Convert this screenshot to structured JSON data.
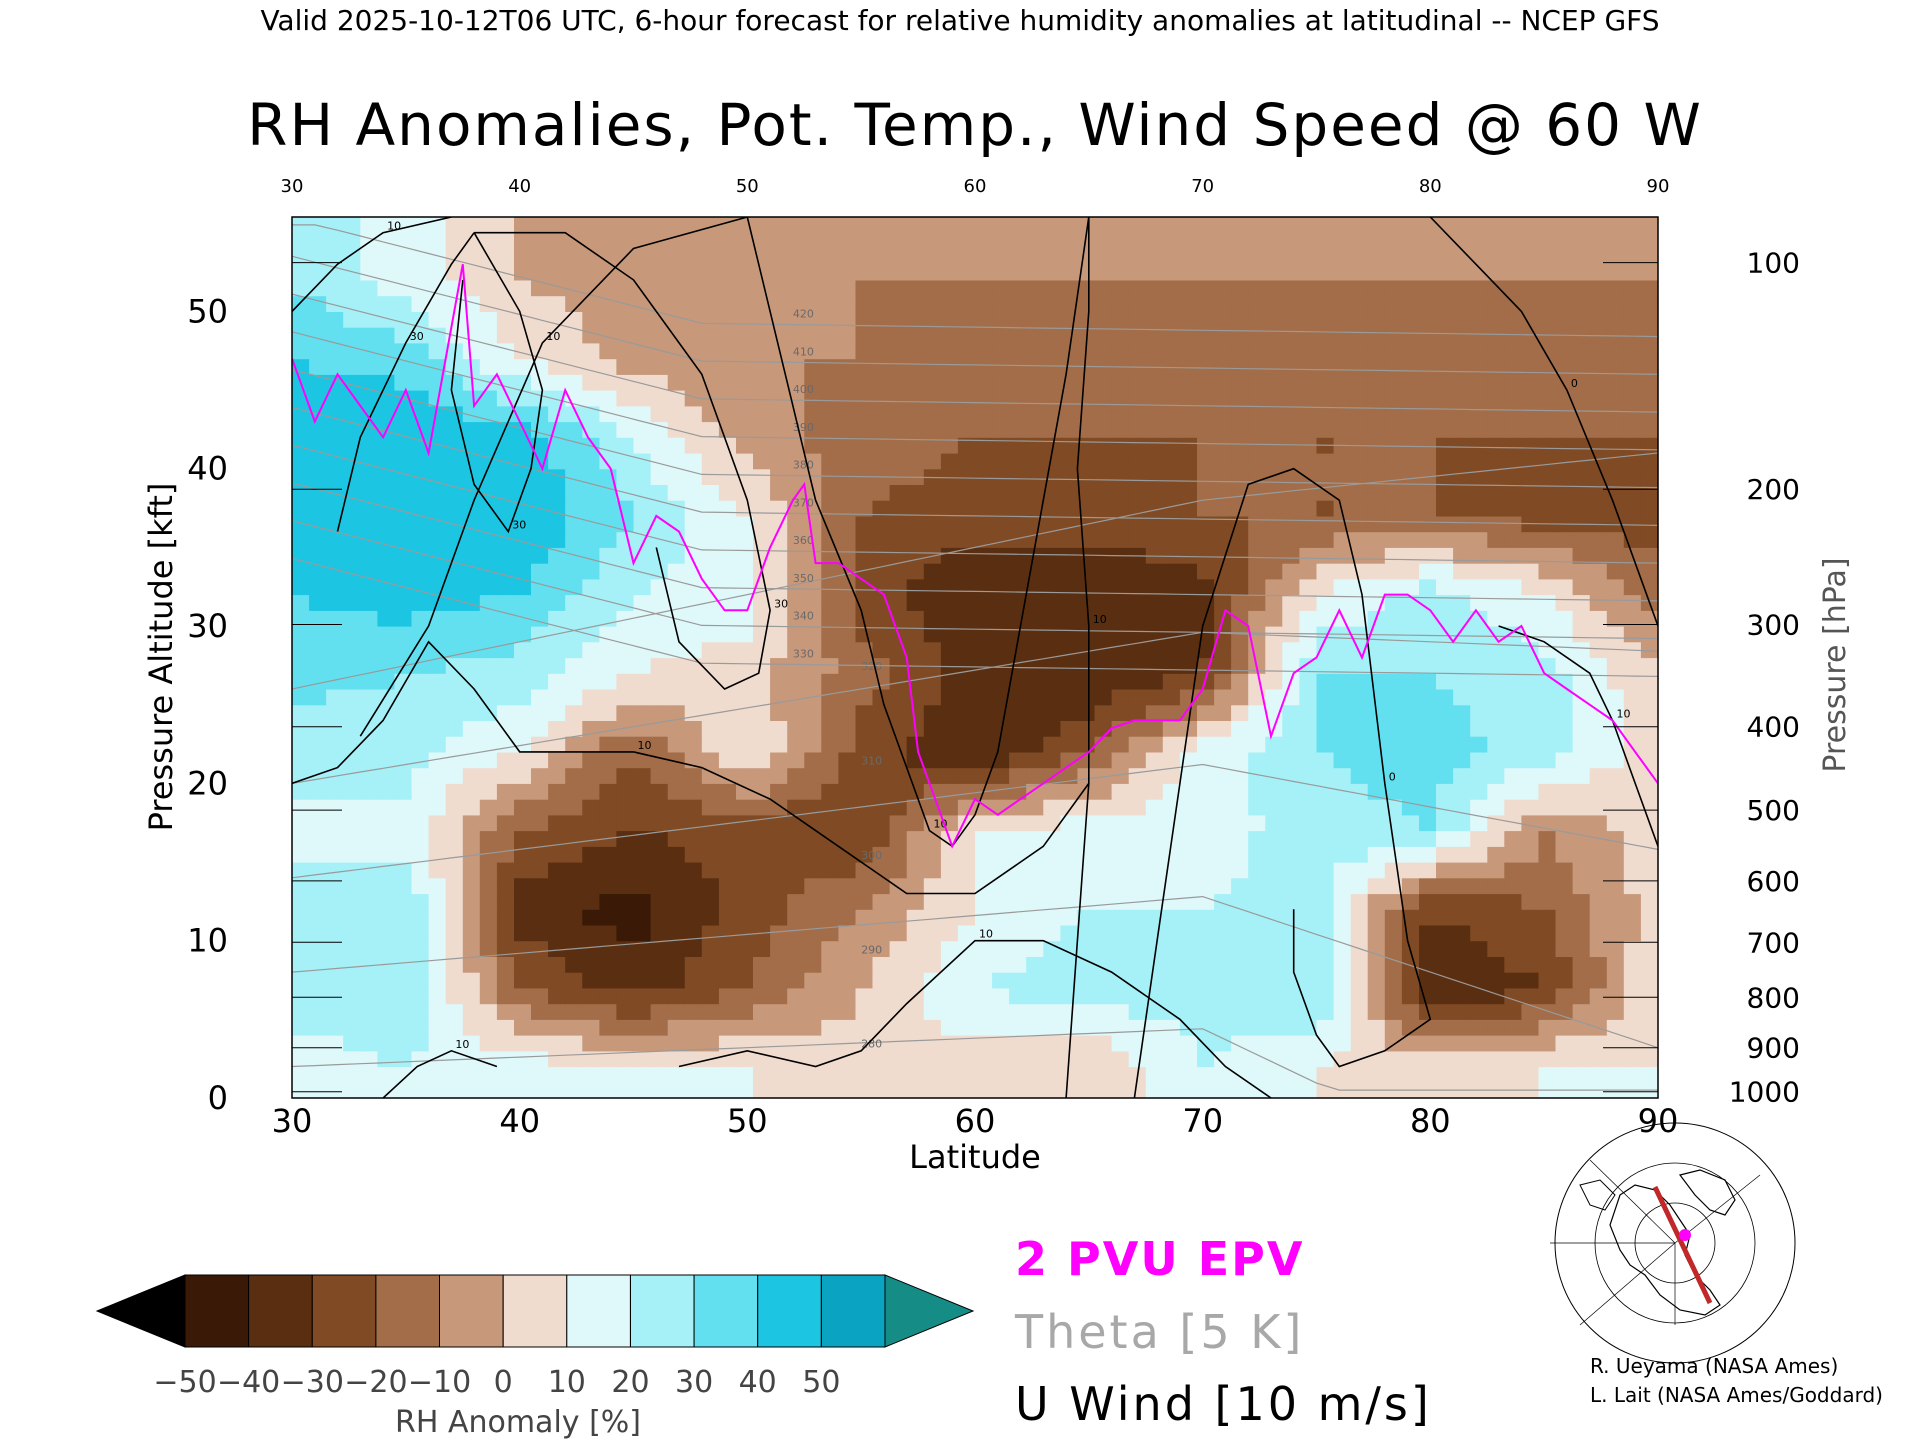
{
  "chart_data": {
    "type": "heatmap",
    "header": "Valid 2025-10-12T06 UTC, 6-hour forecast for relative humidity anomalies at latitudinal -- NCEP GFS",
    "title": "RH Anomalies, Pot. Temp., Wind Speed @ 60 W",
    "xlabel": "Latitude",
    "ylabel": "Pressure Altitude [kft]",
    "ylabel_right": "Pressure [hPa]",
    "xlim": [
      30,
      90
    ],
    "ylim": [
      0,
      56
    ],
    "x_ticks": [
      "30",
      "40",
      "50",
      "60",
      "70",
      "80",
      "90"
    ],
    "y_ticks": [
      "0",
      "10",
      "20",
      "30",
      "40",
      "50"
    ],
    "top_ticks": [
      "30",
      "40",
      "50",
      "60",
      "70",
      "80",
      "90"
    ],
    "pressure_ticks": [
      {
        "label": "100",
        "kft": 53.1
      },
      {
        "label": "200",
        "kft": 38.7
      },
      {
        "label": "300",
        "kft": 30.1
      },
      {
        "label": "400",
        "kft": 23.6
      },
      {
        "label": "500",
        "kft": 18.3
      },
      {
        "label": "600",
        "kft": 13.8
      },
      {
        "label": "700",
        "kft": 9.9
      },
      {
        "label": "800",
        "kft": 6.4
      },
      {
        "label": "900",
        "kft": 3.2
      },
      {
        "label": "1000",
        "kft": 0.4
      }
    ],
    "colorbar": {
      "label": "RH Anomaly [%]",
      "tick_labels": [
        "−50",
        "−40",
        "−30",
        "−20",
        "−10",
        "0",
        "10",
        "20",
        "30",
        "40",
        "50"
      ],
      "colors": [
        "#000000",
        "#3a1a06",
        "#5a2e10",
        "#7f4a24",
        "#a26d48",
        "#c7987a",
        "#f0dccf",
        "#dff8fa",
        "#a6f0f7",
        "#62e0f0",
        "#1cc6e2",
        "#0aa3c2",
        "#168c86"
      ]
    },
    "rh_field": {
      "latitudes": [
        30,
        35,
        40,
        45,
        50,
        55,
        60,
        65,
        70,
        75,
        80,
        85,
        90
      ],
      "altitudes_kft": [
        2,
        7,
        12,
        17,
        22,
        27,
        32,
        37,
        42,
        47,
        52
      ],
      "rh_anomaly_pct": [
        [
          15,
          20,
          15,
          10,
          10,
          5,
          5,
          0,
          20,
          10,
          5,
          10,
          10
        ],
        [
          25,
          30,
          -20,
          -35,
          -20,
          0,
          20,
          25,
          25,
          30,
          -40,
          -30,
          10
        ],
        [
          20,
          30,
          -35,
          -45,
          -25,
          -10,
          10,
          20,
          20,
          25,
          -30,
          -20,
          5
        ],
        [
          20,
          15,
          -20,
          -30,
          -25,
          -30,
          10,
          15,
          15,
          25,
          30,
          -10,
          5
        ],
        [
          20,
          25,
          10,
          -20,
          10,
          -25,
          -40,
          -20,
          15,
          30,
          35,
          25,
          5
        ],
        [
          35,
          30,
          25,
          10,
          5,
          -15,
          -35,
          -40,
          -30,
          30,
          30,
          25,
          0
        ],
        [
          40,
          45,
          40,
          20,
          15,
          -25,
          -40,
          -40,
          -35,
          10,
          25,
          10,
          -15
        ],
        [
          45,
          50,
          50,
          30,
          10,
          -20,
          -25,
          -25,
          -20,
          -20,
          -20,
          -25,
          -25
        ],
        [
          50,
          50,
          45,
          20,
          -5,
          -15,
          -20,
          -20,
          -20,
          -20,
          -20,
          -20,
          -20
        ],
        [
          40,
          35,
          10,
          -5,
          -10,
          -10,
          -15,
          -15,
          -15,
          -15,
          -15,
          -10,
          -15
        ],
        [
          30,
          15,
          0,
          -5,
          -10,
          -10,
          -10,
          -10,
          -10,
          -10,
          -10,
          -10,
          -10
        ]
      ]
    },
    "pv_2pvu_line": {
      "name": "2 PVU EPV",
      "color": "#ff00ff",
      "points": [
        [
          30,
          47
        ],
        [
          31,
          43
        ],
        [
          32,
          46
        ],
        [
          34,
          42
        ],
        [
          35,
          45
        ],
        [
          36,
          41
        ],
        [
          37.5,
          53
        ],
        [
          38,
          44
        ],
        [
          39,
          46
        ],
        [
          40,
          43
        ],
        [
          41,
          40
        ],
        [
          42,
          45
        ],
        [
          43,
          42
        ],
        [
          44,
          40
        ],
        [
          45,
          34
        ],
        [
          46,
          37
        ],
        [
          47,
          36
        ],
        [
          48,
          33
        ],
        [
          49,
          31
        ],
        [
          50,
          31
        ],
        [
          51,
          35
        ],
        [
          52,
          38
        ],
        [
          52.5,
          39
        ],
        [
          53,
          34
        ],
        [
          54,
          34
        ],
        [
          55,
          33
        ],
        [
          56,
          32
        ],
        [
          57,
          28
        ],
        [
          57.5,
          22
        ],
        [
          58.5,
          18
        ],
        [
          59,
          16
        ],
        [
          60,
          19
        ],
        [
          61,
          18
        ],
        [
          62,
          19
        ],
        [
          63,
          20
        ],
        [
          64,
          21
        ],
        [
          65,
          22
        ],
        [
          66,
          23.5
        ],
        [
          67,
          24
        ],
        [
          69,
          24
        ],
        [
          70,
          26
        ],
        [
          71,
          31
        ],
        [
          72,
          30
        ],
        [
          73,
          23
        ],
        [
          74,
          27
        ],
        [
          75,
          28
        ],
        [
          76,
          31
        ],
        [
          77,
          28
        ],
        [
          78,
          32
        ],
        [
          79,
          32
        ],
        [
          80,
          31
        ],
        [
          81,
          29
        ],
        [
          82,
          31
        ],
        [
          83,
          29
        ],
        [
          84,
          30
        ],
        [
          85,
          27
        ],
        [
          86,
          26
        ],
        [
          87,
          25
        ],
        [
          88,
          24
        ],
        [
          89,
          22
        ],
        [
          90,
          20
        ]
      ]
    },
    "theta_levels": [
      "280",
      "290",
      "300",
      "310",
      "320",
      "330",
      "340",
      "350",
      "360",
      "370",
      "380",
      "390",
      "400",
      "410",
      "420"
    ],
    "theta_label": "Theta [5 K]",
    "wind_label": "U Wind [10 m/s]",
    "wind_contours": [
      {
        "label": "30",
        "points": [
          [
            32,
            36
          ],
          [
            33,
            42
          ],
          [
            35,
            48
          ],
          [
            37,
            53
          ],
          [
            38,
            55
          ]
        ]
      },
      {
        "label": "30",
        "points": [
          [
            38,
            55
          ],
          [
            40,
            50
          ],
          [
            41,
            45
          ],
          [
            40.5,
            40
          ],
          [
            39.5,
            36
          ],
          [
            38,
            39
          ],
          [
            37,
            45
          ],
          [
            37.5,
            52
          ]
        ]
      },
      {
        "label": "30",
        "points": [
          [
            38,
            55
          ],
          [
            42,
            55
          ],
          [
            45,
            52
          ],
          [
            48,
            46
          ],
          [
            50,
            38
          ],
          [
            51,
            31
          ],
          [
            50.5,
            27
          ],
          [
            49,
            26
          ],
          [
            47,
            29
          ],
          [
            46,
            35
          ]
        ]
      },
      {
        "label": "10",
        "points": [
          [
            30,
            50
          ],
          [
            32,
            53
          ],
          [
            34,
            55
          ],
          [
            37,
            56
          ]
        ]
      },
      {
        "label": "10",
        "points": [
          [
            30,
            20
          ],
          [
            32,
            21
          ],
          [
            34,
            24
          ],
          [
            36,
            29
          ],
          [
            38,
            26
          ],
          [
            40,
            22
          ],
          [
            42,
            22
          ],
          [
            45,
            22
          ],
          [
            48,
            21
          ],
          [
            51,
            19
          ],
          [
            54,
            16
          ],
          [
            57,
            13
          ],
          [
            60,
            13
          ],
          [
            63,
            16
          ],
          [
            65,
            20
          ]
        ]
      },
      {
        "label": "10",
        "points": [
          [
            33,
            23
          ],
          [
            36,
            30
          ],
          [
            38,
            38
          ],
          [
            41,
            48
          ],
          [
            45,
            54
          ],
          [
            50,
            56
          ]
        ]
      },
      {
        "label": "10",
        "points": [
          [
            50,
            56
          ],
          [
            51,
            50
          ],
          [
            52,
            44
          ],
          [
            53,
            38
          ],
          [
            55,
            31
          ],
          [
            56,
            25
          ],
          [
            57,
            21
          ],
          [
            58,
            17
          ],
          [
            59,
            16
          ],
          [
            60,
            18
          ],
          [
            61,
            22
          ],
          [
            62,
            30
          ],
          [
            63,
            38
          ],
          [
            64,
            46
          ],
          [
            65,
            56
          ]
        ]
      },
      {
        "label": "10",
        "points": [
          [
            64,
            0
          ],
          [
            64.5,
            10
          ],
          [
            65,
            20
          ],
          [
            65,
            30
          ],
          [
            64.5,
            40
          ],
          [
            65,
            50
          ],
          [
            65,
            56
          ]
        ]
      },
      {
        "label": "0",
        "points": [
          [
            67,
            0
          ],
          [
            68,
            10
          ],
          [
            69,
            20
          ],
          [
            70,
            30
          ],
          [
            72,
            39
          ],
          [
            74,
            40
          ],
          [
            76,
            38
          ],
          [
            77,
            32
          ],
          [
            78,
            20
          ],
          [
            79,
            10
          ],
          [
            80,
            5
          ],
          [
            78,
            3
          ],
          [
            76,
            2
          ],
          [
            75,
            4
          ],
          [
            74,
            8
          ],
          [
            74,
            12
          ]
        ]
      },
      {
        "label": "0",
        "points": [
          [
            80,
            56
          ],
          [
            82,
            53
          ],
          [
            84,
            50
          ],
          [
            86,
            45
          ],
          [
            88,
            38
          ],
          [
            90,
            30
          ]
        ]
      },
      {
        "label": "10",
        "points": [
          [
            83,
            30
          ],
          [
            85,
            29
          ],
          [
            87,
            27
          ],
          [
            88,
            24
          ],
          [
            89,
            20
          ],
          [
            90,
            16
          ]
        ]
      },
      {
        "label": "10",
        "points": [
          [
            34,
            0
          ],
          [
            35.5,
            2
          ],
          [
            37,
            3
          ],
          [
            39,
            2
          ]
        ]
      },
      {
        "label": "10",
        "points": [
          [
            47,
            2
          ],
          [
            50,
            3
          ],
          [
            53,
            2
          ],
          [
            55,
            3
          ],
          [
            57,
            6
          ],
          [
            60,
            10
          ],
          [
            63,
            10
          ],
          [
            66,
            8
          ],
          [
            69,
            5
          ],
          [
            71,
            2
          ],
          [
            73,
            0
          ]
        ]
      }
    ],
    "colorbar_title": "RH Anomaly [%]",
    "credits": [
      "R. Ueyama (NASA Ames)",
      "L. Lait (NASA Ames/Goddard)"
    ],
    "map_inset": {
      "track_color": "#c0282a",
      "marker_color": "#ff00ff"
    }
  }
}
